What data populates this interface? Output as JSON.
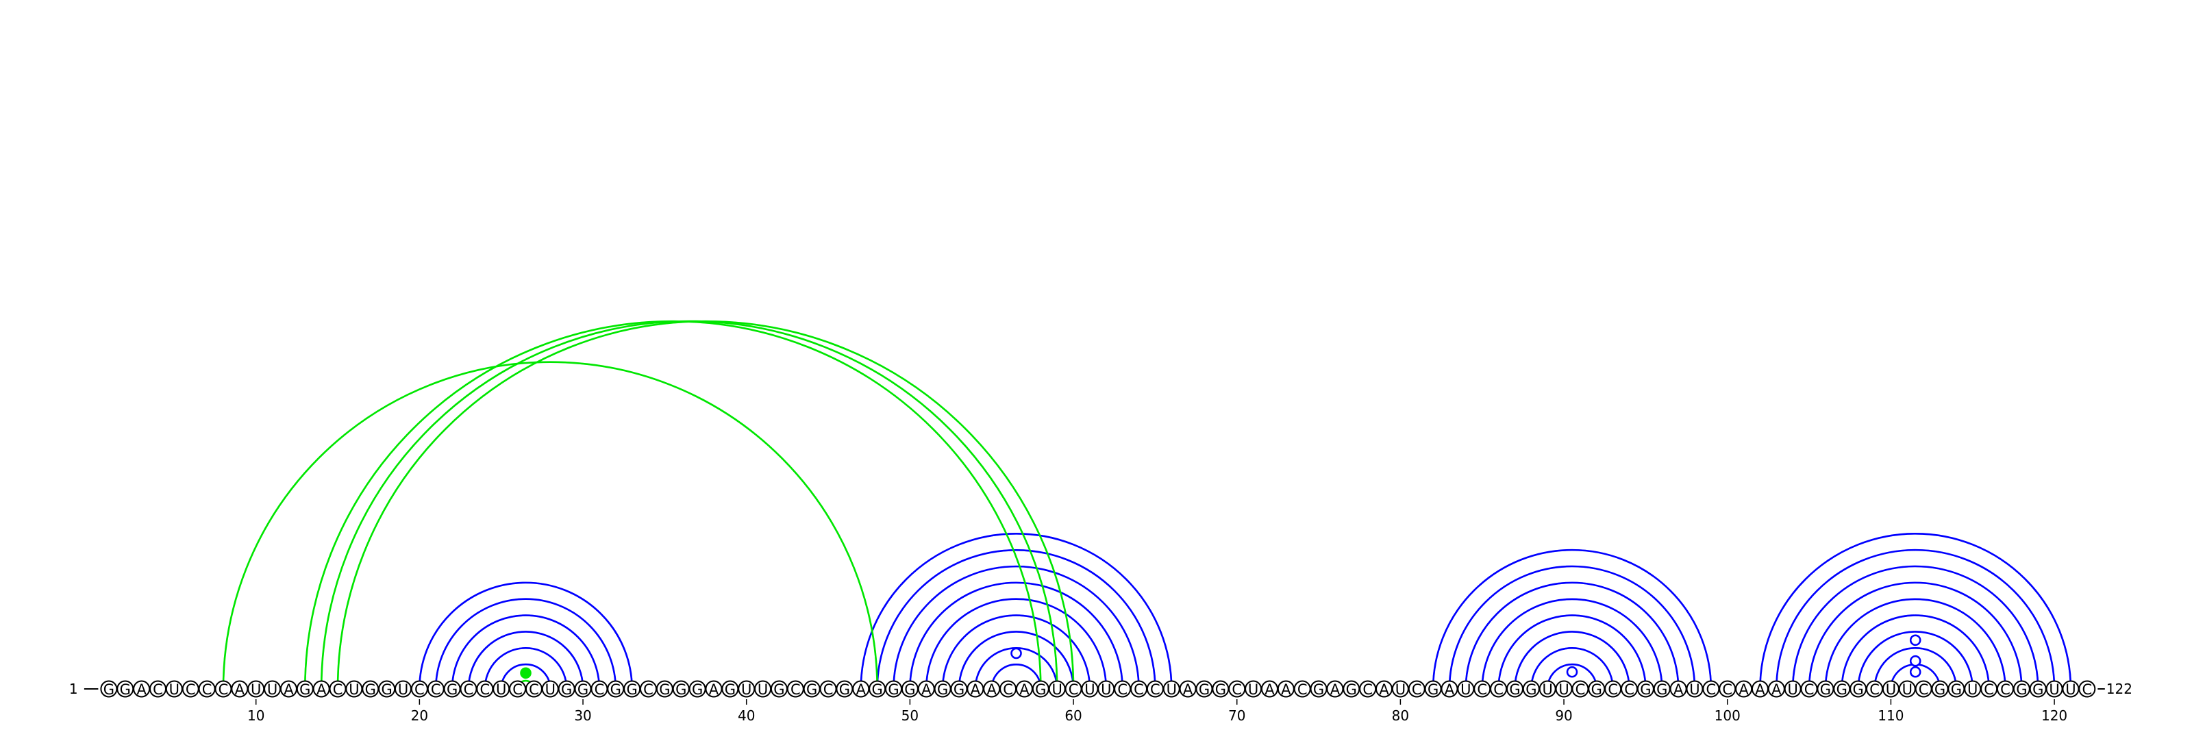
{
  "sequence": "GGACUCCCAUUAGACUGGUCCGCCUCCUGGCGGCGGGAGUUGCGCGAGGGAGGAACAGUCUUCCCUAGGCUAACGAGCAUCGAUCCGGUUCGCCGGAUCCAAAUCGGGCUUCGGUCCGGUUC",
  "start_label": "1",
  "end_label": "122",
  "axis_ticks": [
    10,
    20,
    30,
    40,
    50,
    60,
    70,
    80,
    90,
    100,
    110,
    120
  ],
  "colors": {
    "nested_arcs": "#0000ff",
    "crossing_arcs": "#00e600",
    "outline": "#000000",
    "background": "#ffffff"
  },
  "pair_groups": [
    {
      "name": "hairpin-1",
      "color": "green",
      "pairs": [
        [
          26,
          27
        ]
      ]
    },
    {
      "name": "helix-20-33",
      "color": "blue",
      "pairs": [
        [
          20,
          33
        ],
        [
          21,
          32
        ],
        [
          22,
          31
        ],
        [
          23,
          30
        ],
        [
          24,
          29
        ],
        [
          25,
          28
        ]
      ]
    },
    {
      "name": "helix-47-66",
      "color": "blue",
      "pairs": [
        [
          47,
          66
        ],
        [
          48,
          65
        ],
        [
          49,
          64
        ],
        [
          50,
          63
        ],
        [
          51,
          62
        ],
        [
          52,
          61
        ],
        [
          53,
          60
        ],
        [
          54,
          59
        ],
        [
          55,
          58
        ]
      ]
    },
    {
      "name": "helix-82-99",
      "color": "blue",
      "pairs": [
        [
          82,
          99
        ],
        [
          83,
          98
        ],
        [
          84,
          97
        ],
        [
          85,
          96
        ],
        [
          86,
          95
        ],
        [
          87,
          94
        ],
        [
          88,
          93
        ],
        [
          89,
          92
        ]
      ]
    },
    {
      "name": "helix-102-121",
      "color": "blue",
      "pairs": [
        [
          102,
          121
        ],
        [
          103,
          120
        ],
        [
          104,
          119
        ],
        [
          105,
          118
        ],
        [
          106,
          117
        ],
        [
          107,
          116
        ],
        [
          108,
          115
        ],
        [
          109,
          114
        ],
        [
          110,
          113
        ]
      ]
    },
    {
      "name": "pseudoknot-8-48",
      "color": "green",
      "pairs": [
        [
          8,
          48
        ]
      ]
    },
    {
      "name": "pseudoknot-13-60",
      "color": "green",
      "pairs": [
        [
          13,
          58
        ],
        [
          14,
          59
        ],
        [
          15,
          60
        ]
      ]
    }
  ],
  "markers": [
    {
      "name": "marker-26-27",
      "between": [
        26,
        27
      ],
      "level": 0.7,
      "filled": true,
      "color": "green"
    },
    {
      "name": "marker-56-57",
      "between": [
        56,
        57
      ],
      "level": 2.5,
      "filled": false,
      "color": "blue"
    },
    {
      "name": "marker-90-91",
      "between": [
        90,
        91
      ],
      "level": 0.8,
      "filled": false,
      "color": "blue"
    },
    {
      "name": "marker-111-112-a",
      "between": [
        111,
        112
      ],
      "level": 0.8,
      "filled": false,
      "color": "blue"
    },
    {
      "name": "marker-111-112-b",
      "between": [
        111,
        112
      ],
      "level": 1.8,
      "filled": false,
      "color": "blue"
    },
    {
      "name": "marker-111-112-c",
      "between": [
        111,
        112
      ],
      "level": 3.7,
      "filled": false,
      "color": "blue"
    }
  ]
}
